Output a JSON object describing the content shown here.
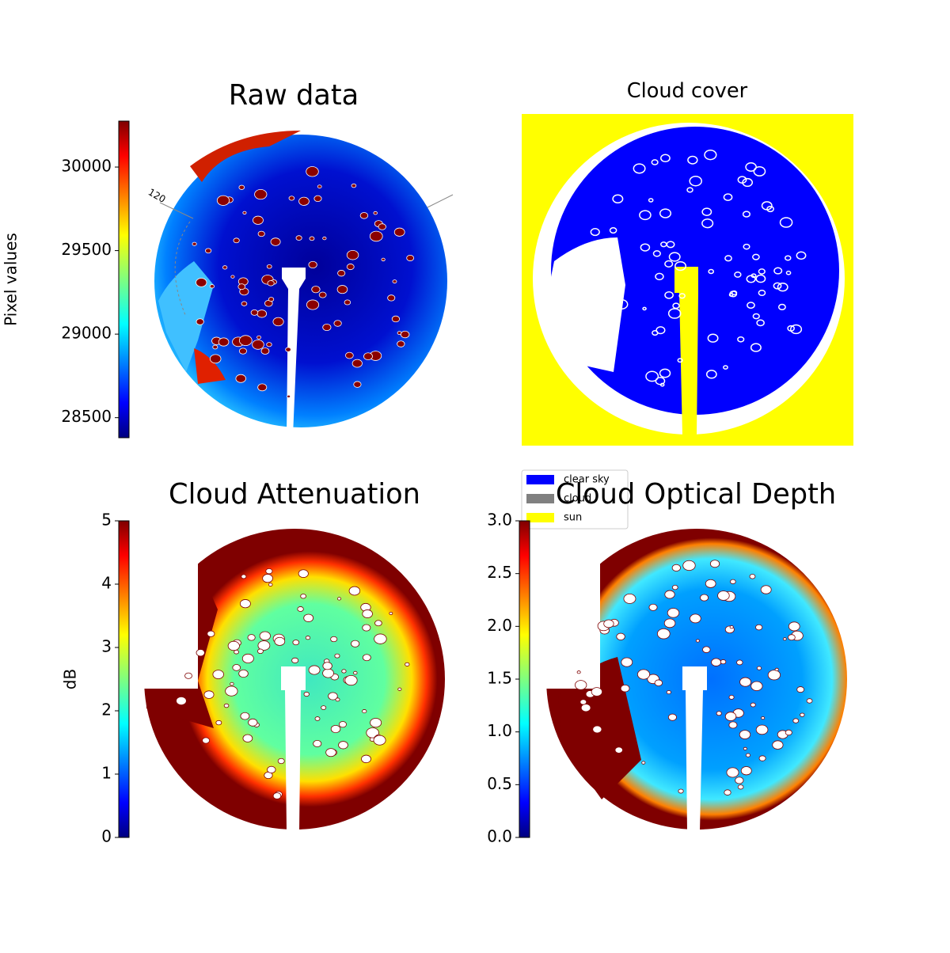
{
  "chart_data": [
    {
      "type": "image",
      "title": "Raw data",
      "colorbar_label": "Pixel values",
      "colormap": "jet",
      "clim": [
        28380,
        30275
      ],
      "cticks": [
        28500,
        29000,
        29500,
        30000
      ],
      "annotations": [
        "120"
      ]
    },
    {
      "type": "image",
      "title": "Cloud cover",
      "series": [
        {
          "name": "clear sky",
          "color": "#0000ff"
        },
        {
          "name": "cloud",
          "color": "#808080"
        },
        {
          "name": "sun",
          "color": "#ffff00"
        }
      ]
    },
    {
      "type": "image",
      "title": "Cloud Attenuation",
      "colorbar_label": "dB",
      "colormap": "jet",
      "clim": [
        0,
        5
      ],
      "cticks": [
        0,
        1,
        2,
        3,
        4,
        5
      ]
    },
    {
      "type": "image",
      "title": "Cloud Optical Depth",
      "colormap": "jet",
      "clim": [
        0,
        3
      ],
      "cticks": [
        {
          "value": 0,
          "label": "0.0"
        },
        0.5,
        {
          "value": 1,
          "label": "1.0"
        },
        1.5,
        {
          "value": 2,
          "label": "2.0"
        },
        2.5,
        {
          "value": 3,
          "label": "3.0"
        }
      ]
    }
  ]
}
